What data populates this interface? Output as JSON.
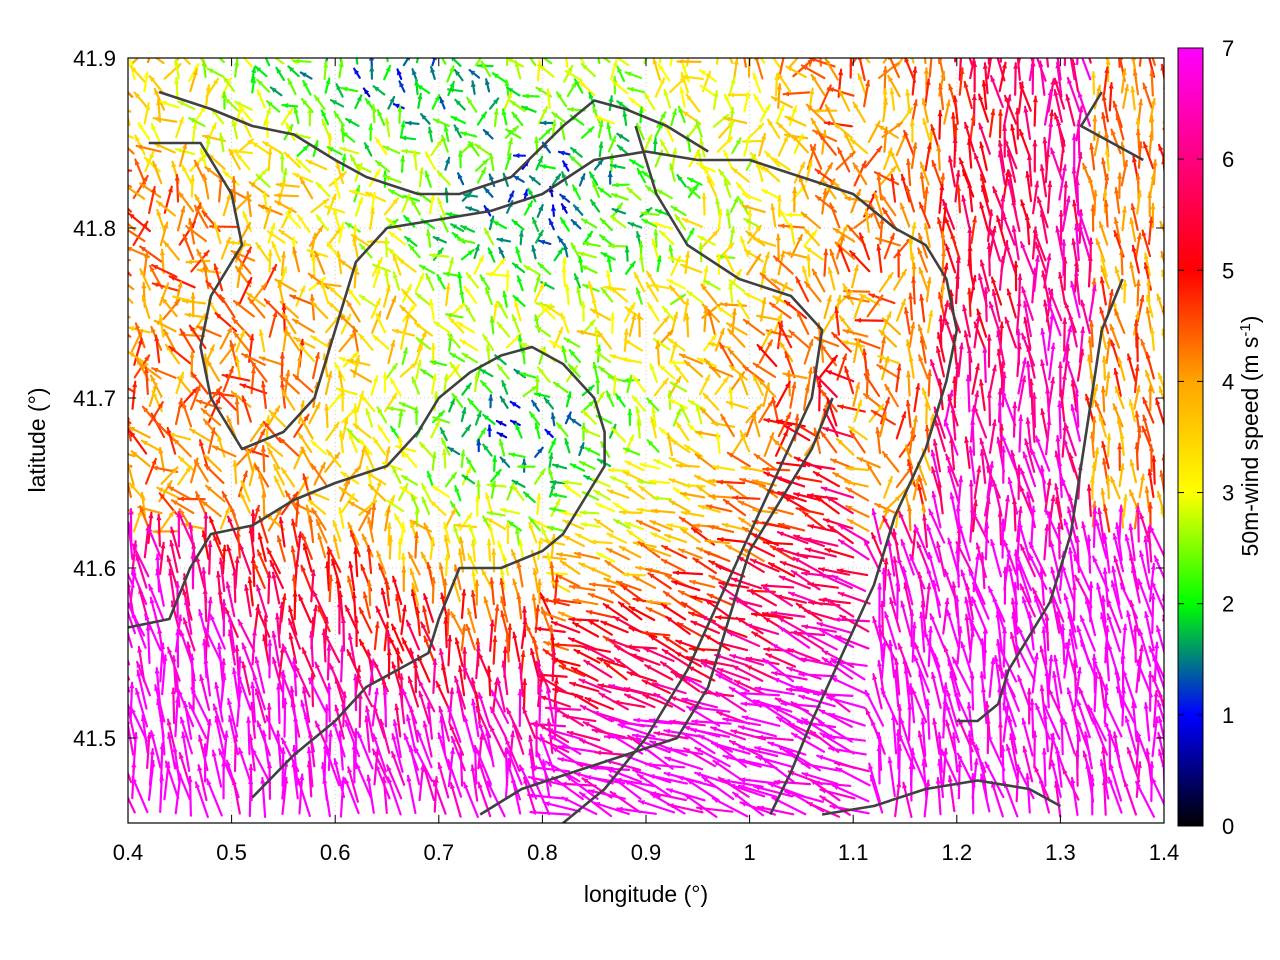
{
  "chart_data": {
    "type": "vector-field",
    "xlabel": "longitude (°)",
    "ylabel": "latitude (°)",
    "colorbar_label": "50m-wind speed (m s-1)",
    "colorbar_label_main": "50m-wind speed (m s",
    "colorbar_label_sup": "-1",
    "colorbar_label_end": ")",
    "xlim": [
      0.4,
      1.4
    ],
    "ylim": [
      41.45,
      41.9
    ],
    "x_ticks": [
      "0.4",
      "0.5",
      "0.6",
      "0.7",
      "0.8",
      "0.9",
      "1",
      "1.1",
      "1.2",
      "1.3",
      "1.4"
    ],
    "y_ticks": [
      "41.5",
      "41.6",
      "41.7",
      "41.8",
      "41.9"
    ],
    "color_range": [
      0,
      7
    ],
    "colorbar_ticks": [
      "0",
      "1",
      "2",
      "3",
      "4",
      "5",
      "6",
      "7"
    ],
    "colormap": [
      "#000000",
      "#0000ff",
      "#00ff00",
      "#ffff00",
      "#ffa500",
      "#ff0000",
      "#ff00ff"
    ],
    "grid": true,
    "contour_color": "#404040",
    "contours": [
      [
        [
          0.4,
          41.565
        ],
        [
          0.44,
          41.57
        ],
        [
          0.46,
          41.6
        ],
        [
          0.48,
          41.62
        ],
        [
          0.52,
          41.625
        ],
        [
          0.56,
          41.64
        ],
        [
          0.6,
          41.65
        ],
        [
          0.65,
          41.66
        ],
        [
          0.68,
          41.68
        ],
        [
          0.7,
          41.7
        ],
        [
          0.73,
          41.715
        ],
        [
          0.76,
          41.725
        ],
        [
          0.79,
          41.73
        ],
        [
          0.82,
          41.72
        ],
        [
          0.85,
          41.7
        ],
        [
          0.86,
          41.68
        ],
        [
          0.86,
          41.66
        ],
        [
          0.84,
          41.64
        ],
        [
          0.82,
          41.62
        ],
        [
          0.8,
          41.61
        ],
        [
          0.76,
          41.6
        ],
        [
          0.72,
          41.6
        ],
        [
          0.7,
          41.57
        ],
        [
          0.69,
          41.55
        ],
        [
          0.66,
          41.54
        ],
        [
          0.63,
          41.53
        ],
        [
          0.6,
          41.51
        ],
        [
          0.56,
          41.49
        ],
        [
          0.52,
          41.465
        ]
      ],
      [
        [
          0.42,
          41.85
        ],
        [
          0.47,
          41.85
        ],
        [
          0.5,
          41.82
        ],
        [
          0.51,
          41.79
        ],
        [
          0.48,
          41.76
        ],
        [
          0.47,
          41.73
        ],
        [
          0.48,
          41.7
        ],
        [
          0.51,
          41.67
        ],
        [
          0.55,
          41.68
        ],
        [
          0.58,
          41.7
        ],
        [
          0.6,
          41.74
        ],
        [
          0.62,
          41.78
        ],
        [
          0.65,
          41.8
        ],
        [
          0.7,
          41.805
        ],
        [
          0.75,
          41.81
        ],
        [
          0.8,
          41.82
        ],
        [
          0.85,
          41.84
        ],
        [
          0.9,
          41.845
        ],
        [
          0.95,
          41.84
        ],
        [
          1.0,
          41.84
        ],
        [
          1.05,
          41.83
        ],
        [
          1.1,
          41.82
        ],
        [
          1.14,
          41.8
        ],
        [
          1.17,
          41.79
        ],
        [
          1.19,
          41.77
        ],
        [
          1.2,
          41.74
        ],
        [
          1.19,
          41.71
        ],
        [
          1.17,
          41.67
        ],
        [
          1.14,
          41.63
        ],
        [
          1.12,
          41.59
        ],
        [
          1.09,
          41.55
        ],
        [
          1.06,
          41.51
        ],
        [
          1.04,
          41.48
        ],
        [
          1.02,
          41.455
        ]
      ],
      [
        [
          0.43,
          41.88
        ],
        [
          0.48,
          41.87
        ],
        [
          0.52,
          41.86
        ],
        [
          0.56,
          41.855
        ],
        [
          0.6,
          41.84
        ],
        [
          0.63,
          41.83
        ],
        [
          0.68,
          41.82
        ],
        [
          0.72,
          41.82
        ],
        [
          0.77,
          41.83
        ],
        [
          0.82,
          41.86
        ],
        [
          0.85,
          41.875
        ],
        [
          0.88,
          41.87
        ],
        [
          0.92,
          41.86
        ],
        [
          0.96,
          41.845
        ]
      ],
      [
        [
          1.34,
          41.88
        ],
        [
          1.32,
          41.86
        ],
        [
          1.35,
          41.85
        ],
        [
          1.38,
          41.84
        ]
      ],
      [
        [
          0.89,
          41.86
        ],
        [
          0.91,
          41.82
        ],
        [
          0.94,
          41.79
        ],
        [
          0.99,
          41.77
        ],
        [
          1.04,
          41.76
        ],
        [
          1.07,
          41.74
        ],
        [
          1.06,
          41.7
        ],
        [
          1.03,
          41.66
        ],
        [
          1.0,
          41.62
        ],
        [
          0.97,
          41.58
        ],
        [
          0.94,
          41.54
        ],
        [
          0.9,
          41.5
        ],
        [
          0.86,
          41.47
        ],
        [
          0.82,
          41.45
        ]
      ],
      [
        [
          1.2,
          41.51
        ],
        [
          1.22,
          41.51
        ],
        [
          1.24,
          41.52
        ],
        [
          1.25,
          41.54
        ],
        [
          1.27,
          41.56
        ],
        [
          1.29,
          41.58
        ],
        [
          1.31,
          41.62
        ],
        [
          1.32,
          41.66
        ],
        [
          1.33,
          41.7
        ],
        [
          1.34,
          41.74
        ],
        [
          1.36,
          41.77
        ]
      ],
      [
        [
          1.07,
          41.455
        ],
        [
          1.12,
          41.46
        ],
        [
          1.17,
          41.47
        ],
        [
          1.22,
          41.475
        ],
        [
          1.27,
          41.47
        ],
        [
          1.3,
          41.46
        ]
      ],
      [
        [
          0.74,
          41.455
        ],
        [
          0.78,
          41.47
        ],
        [
          0.83,
          41.48
        ],
        [
          0.88,
          41.49
        ],
        [
          0.93,
          41.5
        ],
        [
          0.96,
          41.53
        ],
        [
          0.98,
          41.57
        ],
        [
          1.0,
          41.61
        ],
        [
          1.03,
          41.64
        ],
        [
          1.06,
          41.67
        ],
        [
          1.08,
          41.7
        ]
      ]
    ]
  }
}
